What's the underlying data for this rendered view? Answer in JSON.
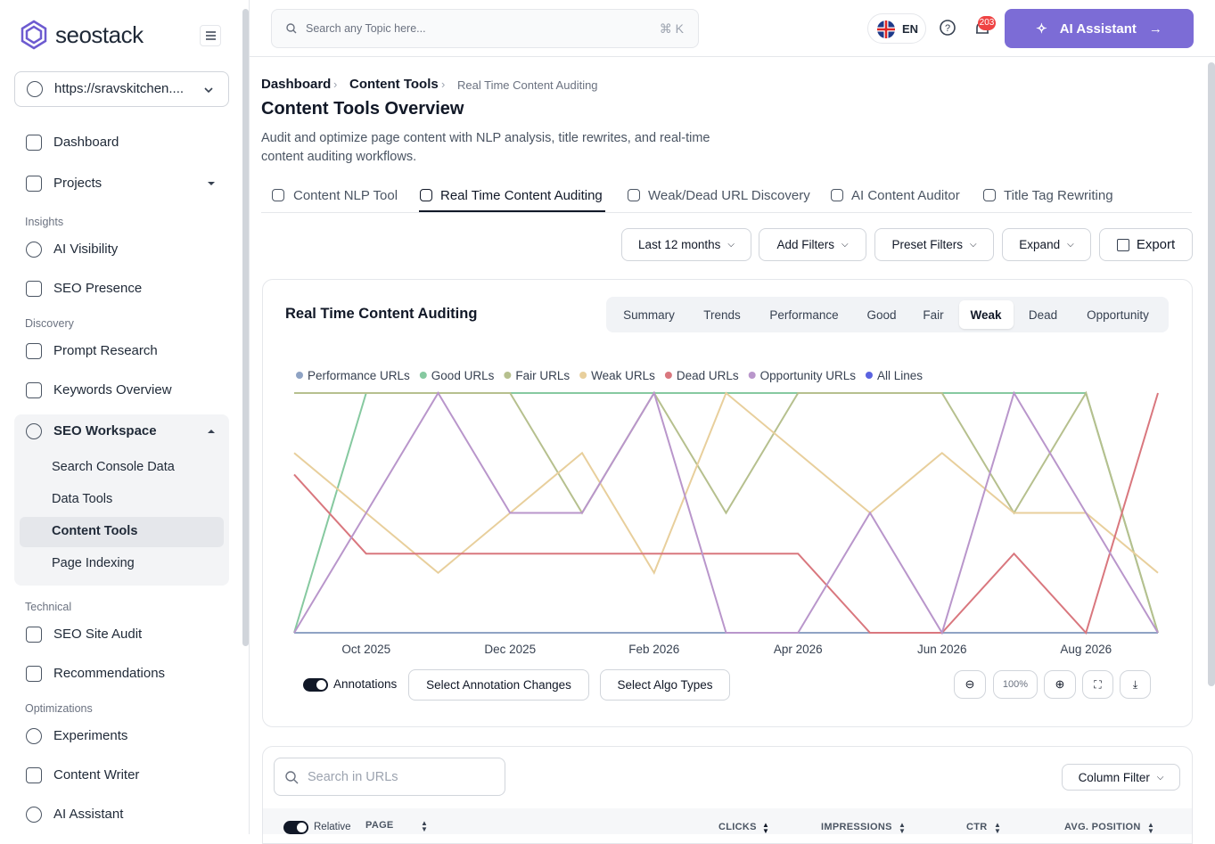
{
  "sidebar": {
    "logo": "seostack",
    "site": "https://sravskitchen....",
    "items": {
      "dashboard": "Dashboard",
      "projects": "Projects",
      "insights": "Insights",
      "ai_visibility": "AI Visibility",
      "seo_presence": "SEO Presence",
      "discovery": "Discovery",
      "prompt_research": "Prompt Research",
      "keywords_overview": "Keywords Overview",
      "seo_workspace": "SEO Workspace",
      "search_console_data": "Search Console Data",
      "data_tools": "Data Tools",
      "content_tools": "Content Tools",
      "page_indexing": "Page Indexing",
      "technical": "Technical",
      "seo_site_audit": "SEO Site Audit",
      "recommendations": "Recommendations",
      "optimizations": "Optimizations",
      "experiments": "Experiments",
      "content_writer": "Content Writer",
      "ai_assistant": "AI Assistant"
    }
  },
  "topbar": {
    "search": "Search any Topic here...",
    "shortcut": "⌘ K",
    "language": "EN",
    "notifications": "203",
    "assistant": "AI Assistant"
  },
  "breadcrumb": [
    "Dashboard",
    "Content Tools",
    "Real Time Content Auditing"
  ],
  "header": {
    "title": "Content Tools Overview",
    "description": "Audit and optimize page content with NLP analysis, title rewrites, and real-time content auditing workflows."
  },
  "tabs": [
    "Content NLP Tool",
    "Real Time Content Auditing",
    "Weak/Dead URL Discovery",
    "AI Content Auditor",
    "Title Tag Rewriting"
  ],
  "filters": [
    "Last 12 months",
    "Add Filters",
    "Preset Filters",
    "Expand",
    "Export"
  ],
  "card": {
    "title": "Real Time Content Auditing",
    "segments": [
      "Summary",
      "Trends",
      "Performance",
      "Good",
      "Fair",
      "Weak",
      "Dead",
      "Opportunity"
    ],
    "annotations": "Annotations",
    "annotation_button": "Select Annotation Changes",
    "algo_button": "Select Algo Types",
    "zoom": "100%"
  },
  "chart_data": {
    "type": "line",
    "categories": [
      null,
      "Oct 2025",
      null,
      "Dec 2025",
      null,
      "Feb 2026",
      null,
      "Apr 2026",
      null,
      "Jun 2026",
      null,
      "Aug 2026",
      null
    ],
    "ylim": [
      0,
      100
    ],
    "series": [
      {
        "name": "Performance URLs",
        "color": "#8fa3c4",
        "values": [
          0,
          0,
          0,
          0,
          0,
          0,
          0,
          0,
          0,
          0,
          0,
          0,
          0
        ]
      },
      {
        "name": "Good URLs",
        "color": "#86c9a0",
        "values": [
          0,
          100,
          100,
          100,
          100,
          100,
          100,
          100,
          100,
          100,
          100,
          100,
          0
        ]
      },
      {
        "name": "Fair URLs",
        "color": "#b6c08e",
        "values": [
          100,
          100,
          100,
          100,
          50,
          100,
          50,
          100,
          100,
          100,
          50,
          100,
          0
        ]
      },
      {
        "name": "Weak URLs",
        "color": "#e8cf9c",
        "values": [
          75,
          50,
          25,
          50,
          75,
          25,
          100,
          75,
          50,
          75,
          50,
          50,
          25
        ]
      },
      {
        "name": "Dead URLs",
        "color": "#d9777e",
        "values": [
          66,
          33,
          33,
          33,
          33,
          33,
          33,
          33,
          0,
          0,
          33,
          0,
          100
        ]
      },
      {
        "name": "Opportunity URLs",
        "color": "#b996cb",
        "values": [
          0,
          50,
          100,
          50,
          50,
          100,
          0,
          0,
          50,
          0,
          100,
          50,
          0
        ]
      }
    ],
    "legend_extra": {
      "name": "All Lines",
      "color": "#5b63e0"
    }
  },
  "table": {
    "search": "Search in URLs",
    "column_filter": "Column Filter",
    "relative": "Relative",
    "headers": [
      "PAGE",
      "CLICKS",
      "IMPRESSIONS",
      "CTR",
      "AVG. POSITION"
    ]
  }
}
